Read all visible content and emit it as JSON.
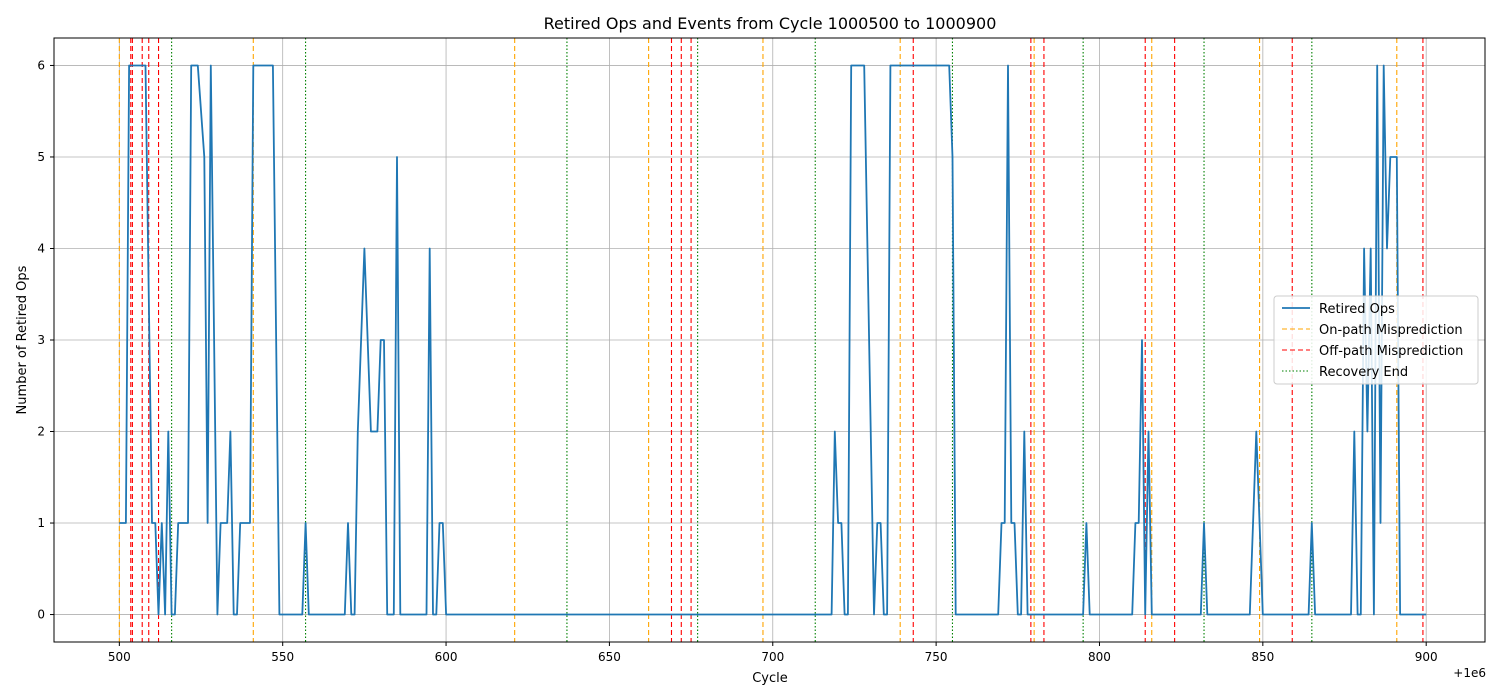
{
  "chart_data": {
    "type": "line",
    "title": "Retired Ops and Events from Cycle 1000500 to 1000900",
    "xlabel": "Cycle",
    "ylabel": "Number of Retired Ops",
    "x_offset_label": "+1e6",
    "xlim": [
      480,
      918
    ],
    "ylim": [
      -0.3,
      6.3
    ],
    "xticks": [
      500,
      550,
      600,
      650,
      700,
      750,
      800,
      850,
      900
    ],
    "yticks": [
      0,
      1,
      2,
      3,
      4,
      5,
      6
    ],
    "grid": true,
    "legend_position": "center-right",
    "colors": {
      "retired_ops": "#1f77b4",
      "on_path": "#ffa500",
      "off_path": "#ff0000",
      "recovery": "#008000"
    },
    "series": [
      {
        "name": "Retired Ops",
        "style": "solid",
        "points": [
          [
            500,
            1
          ],
          [
            502,
            1
          ],
          [
            503,
            6
          ],
          [
            508,
            6
          ],
          [
            510,
            1
          ],
          [
            511,
            1
          ],
          [
            512,
            0
          ],
          [
            513,
            1
          ],
          [
            514,
            0
          ],
          [
            515,
            2
          ],
          [
            516,
            0
          ],
          [
            517,
            0
          ],
          [
            518,
            1
          ],
          [
            521,
            1
          ],
          [
            522,
            6
          ],
          [
            524,
            6
          ],
          [
            526,
            5
          ],
          [
            527,
            1
          ],
          [
            528,
            6
          ],
          [
            530,
            0
          ],
          [
            531,
            1
          ],
          [
            533,
            1
          ],
          [
            534,
            2
          ],
          [
            535,
            0
          ],
          [
            536,
            0
          ],
          [
            537,
            1
          ],
          [
            540,
            1
          ],
          [
            541,
            6
          ],
          [
            547,
            6
          ],
          [
            549,
            0
          ],
          [
            556,
            0
          ],
          [
            557,
            1
          ],
          [
            558,
            0
          ],
          [
            569,
            0
          ],
          [
            570,
            1
          ],
          [
            571,
            0
          ],
          [
            572,
            0
          ],
          [
            573,
            2
          ],
          [
            575,
            4
          ],
          [
            577,
            2
          ],
          [
            579,
            2
          ],
          [
            580,
            3
          ],
          [
            581,
            3
          ],
          [
            582,
            0
          ],
          [
            584,
            0
          ],
          [
            585,
            5
          ],
          [
            586,
            0
          ],
          [
            594,
            0
          ],
          [
            595,
            4
          ],
          [
            596,
            0
          ],
          [
            597,
            0
          ],
          [
            598,
            1
          ],
          [
            599,
            1
          ],
          [
            600,
            0
          ],
          [
            718,
            0
          ],
          [
            719,
            2
          ],
          [
            720,
            1
          ],
          [
            721,
            1
          ],
          [
            722,
            0
          ],
          [
            723,
            0
          ],
          [
            724,
            6
          ],
          [
            728,
            6
          ],
          [
            731,
            0
          ],
          [
            732,
            1
          ],
          [
            733,
            1
          ],
          [
            734,
            0
          ],
          [
            735,
            0
          ],
          [
            736,
            6
          ],
          [
            754,
            6
          ],
          [
            755,
            5
          ],
          [
            756,
            0
          ],
          [
            769,
            0
          ],
          [
            770,
            1
          ],
          [
            771,
            1
          ],
          [
            772,
            6
          ],
          [
            773,
            1
          ],
          [
            774,
            1
          ],
          [
            775,
            0
          ],
          [
            776,
            0
          ],
          [
            777,
            2
          ],
          [
            778,
            0
          ],
          [
            795,
            0
          ],
          [
            796,
            1
          ],
          [
            797,
            0
          ],
          [
            810,
            0
          ],
          [
            811,
            1
          ],
          [
            812,
            1
          ],
          [
            813,
            3
          ],
          [
            814,
            0
          ],
          [
            815,
            2
          ],
          [
            816,
            0
          ],
          [
            831,
            0
          ],
          [
            832,
            1
          ],
          [
            833,
            0
          ],
          [
            846,
            0
          ],
          [
            848,
            2
          ],
          [
            850,
            0
          ],
          [
            864,
            0
          ],
          [
            865,
            1
          ],
          [
            866,
            0
          ],
          [
            877,
            0
          ],
          [
            878,
            2
          ],
          [
            879,
            0
          ],
          [
            880,
            0
          ],
          [
            881,
            4
          ],
          [
            882,
            2
          ],
          [
            883,
            4
          ],
          [
            884,
            0
          ],
          [
            885,
            6
          ],
          [
            886,
            1
          ],
          [
            887,
            6
          ],
          [
            888,
            4
          ],
          [
            889,
            5
          ],
          [
            891,
            5
          ],
          [
            892,
            0
          ],
          [
            900,
            0
          ]
        ]
      },
      {
        "name": "On-path Misprediction",
        "style": "dashed",
        "x": [
          500,
          541,
          621,
          662,
          697,
          739,
          780,
          816,
          849,
          891
        ]
      },
      {
        "name": "Off-path Misprediction",
        "style": "dashed",
        "x": [
          503.5,
          504,
          507,
          509,
          512,
          669,
          672,
          675,
          743,
          779,
          783,
          814,
          823,
          859,
          899
        ]
      },
      {
        "name": "Recovery End",
        "style": "dotted",
        "x": [
          516,
          557,
          637,
          677,
          713,
          755,
          795,
          832,
          865
        ]
      }
    ]
  }
}
